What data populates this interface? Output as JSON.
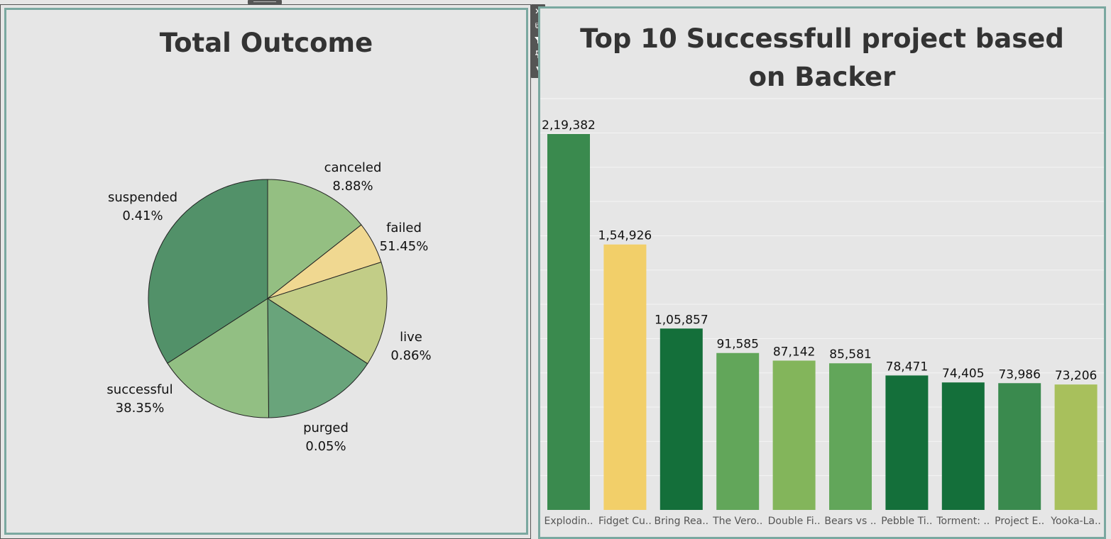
{
  "pie": {
    "title": "Total Outcome",
    "chart_data": {
      "type": "pie",
      "title": "Total Outcome",
      "slices": [
        {
          "label": "canceled",
          "pct_label": "8.88%",
          "value": 8.88,
          "color": "#94bf82"
        },
        {
          "label": "failed",
          "pct_label": "51.45%",
          "value": 51.45,
          "color": "#f0d891"
        },
        {
          "label": "live",
          "pct_label": "0.86%",
          "value": 0.86,
          "color": "#c2cd87"
        },
        {
          "label": "purged",
          "pct_label": "0.05%",
          "value": 0.05,
          "color": "#69a47b"
        },
        {
          "label": "successful",
          "pct_label": "38.35%",
          "value": 38.35,
          "color": "#92bf83"
        },
        {
          "label": "suspended",
          "pct_label": "0.41%",
          "value": 0.41,
          "color": "#529169"
        }
      ]
    }
  },
  "bars": {
    "title": "Top 10 Successfull project based on Backer",
    "chart_data": {
      "type": "bar",
      "title": "Top 10 Successfull project based on Backer",
      "categories": [
        "Explodin..",
        "Fidget Cu..",
        "Bring Rea..",
        "The Vero..",
        "Double Fi..",
        "Bears vs ..",
        "Pebble Ti..",
        "Torment: ..",
        "Project E..",
        "Yooka-La.."
      ],
      "values": [
        219382,
        154926,
        105857,
        91585,
        87142,
        85581,
        78471,
        74405,
        73986,
        73206
      ],
      "value_labels": [
        "2,19,382",
        "1,54,926",
        "1,05,857",
        "91,585",
        "87,142",
        "85,581",
        "78,471",
        "74,405",
        "73,986",
        "73,206"
      ],
      "colors": [
        "#3a8a4e",
        "#f2cf69",
        "#146f3a",
        "#62a65a",
        "#83b55b",
        "#62a65a",
        "#146f3a",
        "#146f3a",
        "#3a8a4e",
        "#a8c05c"
      ],
      "ylim": [
        0,
        240000
      ],
      "grid": true
    }
  },
  "toolbar": {
    "icons": [
      "close-icon",
      "popout-icon",
      "filter-icon",
      "pin-icon",
      "menu-arrow-icon"
    ]
  }
}
